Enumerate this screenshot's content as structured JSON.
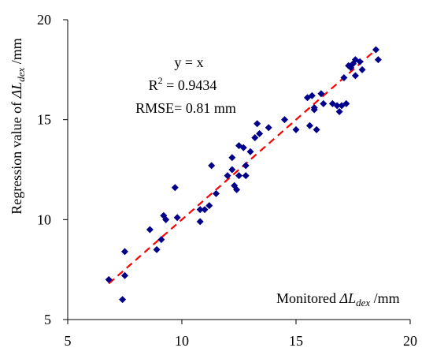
{
  "chart_data": {
    "type": "scatter",
    "title": "",
    "xlabel": {
      "prefix": "Monitored ",
      "symbol": "ΔL",
      "subscript": "dex",
      "unit": " /mm"
    },
    "ylabel": {
      "prefix": "Regression value of ",
      "symbol": "ΔL",
      "subscript": "dex",
      "unit": " /mm"
    },
    "xlim": [
      5,
      20
    ],
    "ylim": [
      5,
      20
    ],
    "xticks": [
      "5",
      "10",
      "15",
      "20"
    ],
    "yticks": [
      "5",
      "10",
      "15",
      "20"
    ],
    "grid": false,
    "colors": {
      "points": "#00008B",
      "fit_line": "#FF0000"
    },
    "annotations": {
      "equation": "y = x",
      "r2_label": "R",
      "r2_exp": "2",
      "r2_value": " = 0.9434",
      "rmse": "RMSE= 0.81 mm"
    },
    "fit_line": {
      "style": "dashed",
      "x": [
        6.8,
        18.5
      ],
      "y": [
        6.8,
        18.5
      ]
    },
    "series": [
      {
        "points": [
          [
            6.8,
            7.0
          ],
          [
            7.4,
            6.0
          ],
          [
            7.5,
            7.2
          ],
          [
            7.5,
            8.4
          ],
          [
            8.6,
            9.5
          ],
          [
            8.9,
            8.5
          ],
          [
            9.1,
            9.0
          ],
          [
            9.2,
            10.2
          ],
          [
            9.3,
            10.0
          ],
          [
            9.7,
            11.6
          ],
          [
            9.8,
            10.1
          ],
          [
            10.8,
            9.9
          ],
          [
            10.8,
            10.5
          ],
          [
            11.0,
            10.5
          ],
          [
            11.2,
            10.7
          ],
          [
            11.3,
            12.7
          ],
          [
            11.5,
            11.3
          ],
          [
            12.0,
            12.2
          ],
          [
            12.2,
            12.5
          ],
          [
            12.2,
            13.1
          ],
          [
            12.3,
            11.7
          ],
          [
            12.4,
            11.5
          ],
          [
            12.5,
            12.2
          ],
          [
            12.5,
            13.7
          ],
          [
            12.7,
            13.6
          ],
          [
            12.8,
            12.2
          ],
          [
            12.8,
            12.7
          ],
          [
            13.0,
            13.4
          ],
          [
            13.2,
            14.1
          ],
          [
            13.3,
            14.8
          ],
          [
            13.4,
            14.3
          ],
          [
            13.8,
            14.6
          ],
          [
            14.5,
            15.0
          ],
          [
            15.0,
            14.5
          ],
          [
            15.5,
            16.1
          ],
          [
            15.6,
            14.7
          ],
          [
            15.7,
            16.2
          ],
          [
            15.8,
            15.5
          ],
          [
            15.8,
            15.6
          ],
          [
            15.9,
            14.5
          ],
          [
            16.1,
            16.3
          ],
          [
            16.2,
            15.8
          ],
          [
            16.6,
            15.8
          ],
          [
            16.8,
            15.7
          ],
          [
            16.9,
            15.4
          ],
          [
            17.0,
            15.7
          ],
          [
            17.1,
            17.1
          ],
          [
            17.2,
            15.8
          ],
          [
            17.3,
            17.7
          ],
          [
            17.4,
            17.6
          ],
          [
            17.5,
            17.8
          ],
          [
            17.6,
            17.2
          ],
          [
            17.6,
            18.0
          ],
          [
            17.8,
            17.9
          ],
          [
            17.9,
            17.5
          ],
          [
            18.5,
            18.5
          ],
          [
            18.6,
            18.0
          ]
        ]
      }
    ]
  }
}
